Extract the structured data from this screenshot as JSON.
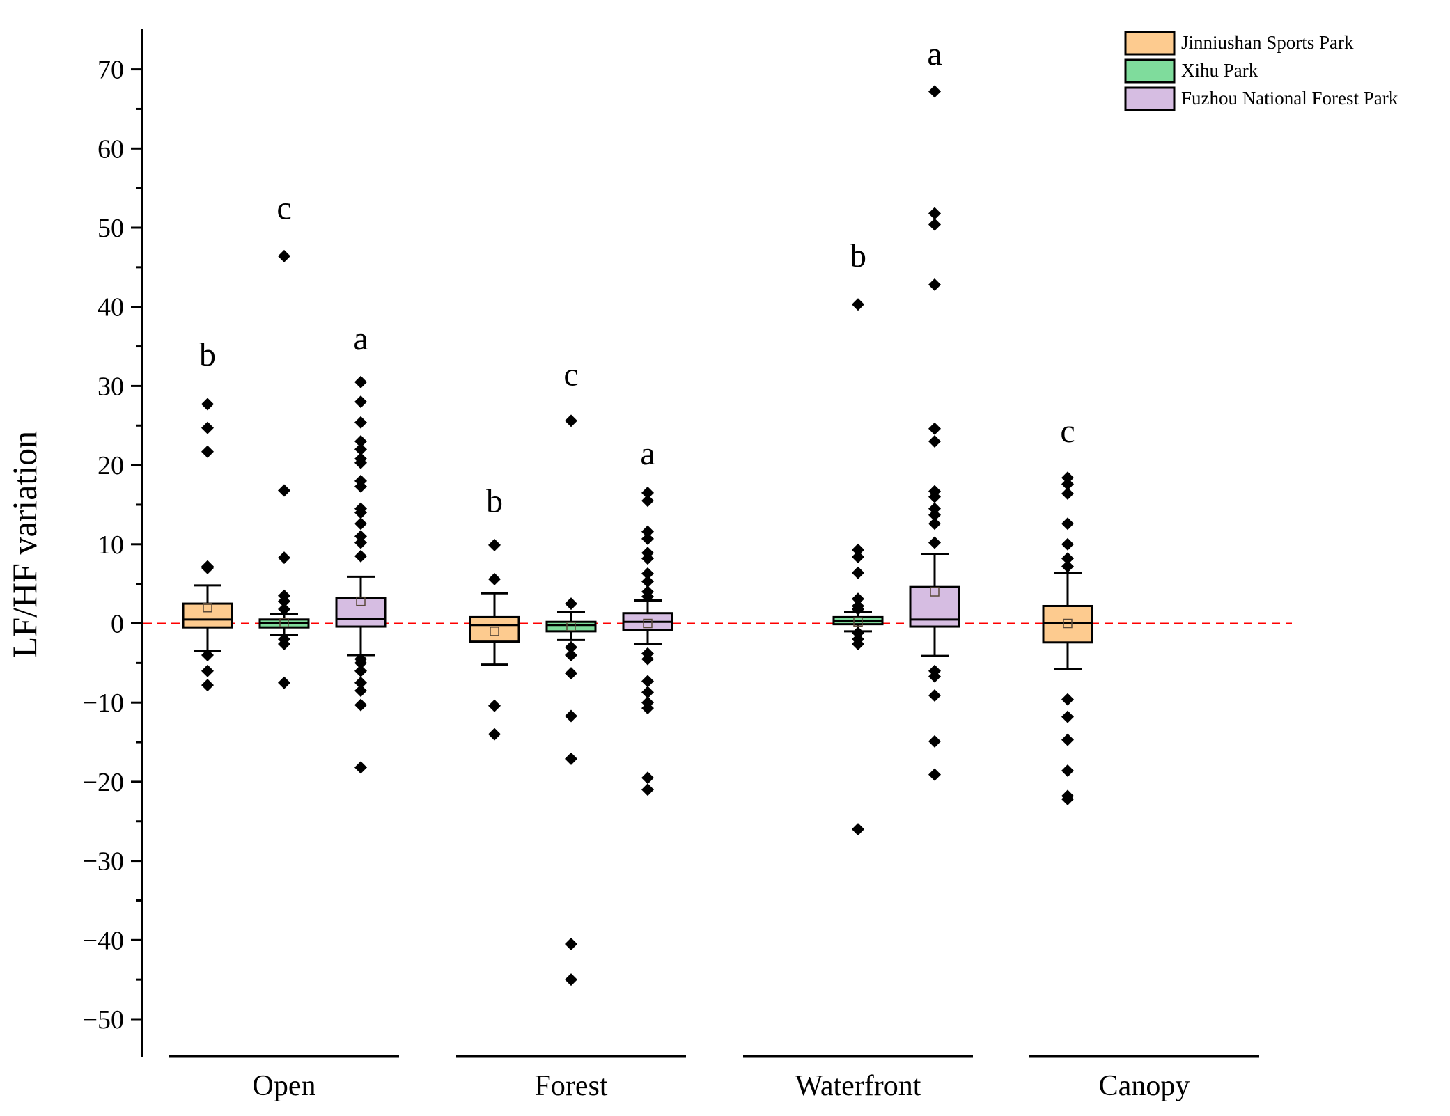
{
  "chart_data": {
    "type": "box",
    "ylabel": "LF/HF variation",
    "xlabel": "",
    "ylim": [
      -55,
      75
    ],
    "yticks": [
      -50,
      -40,
      -30,
      -20,
      -10,
      0,
      10,
      20,
      30,
      40,
      50,
      60,
      70
    ],
    "ytick_labels": [
      "−50",
      "−40",
      "−30",
      "−20",
      "−10",
      "0",
      "10",
      "20",
      "30",
      "40",
      "50",
      "60",
      "70"
    ],
    "reference_line": {
      "y": 0,
      "style": "dashed",
      "color": "#ff0000"
    },
    "categories": [
      "Open",
      "Forest",
      "Waterfront",
      "Canopy"
    ],
    "legend": {
      "position": "top-right",
      "entries": [
        {
          "name": "Jinniushan Sports Park",
          "color": "#fdcb8f"
        },
        {
          "name": "Xihu Park",
          "color": "#7fdc9c"
        },
        {
          "name": "Fuzhou National Forest Park",
          "color": "#d6bde2"
        }
      ]
    },
    "groups": [
      {
        "category": "Open",
        "boxes": [
          {
            "series": "Jinniushan Sports Park",
            "slot": 0,
            "letter": "b",
            "letter_y": 34,
            "whisker_low": -3.5,
            "q1": -0.5,
            "median": 0.5,
            "q3": 2.5,
            "whisker_high": 4.8,
            "mean": 2.0,
            "outliers": [
              27.7,
              24.7,
              21.7,
              7.2,
              7.0,
              -4.0,
              -6.0,
              -7.8
            ]
          },
          {
            "series": "Xihu Park",
            "slot": 1,
            "letter": "c",
            "letter_y": 52.5,
            "whisker_low": -1.5,
            "q1": -0.5,
            "median": 0.0,
            "q3": 0.5,
            "whisker_high": 1.2,
            "mean": 0.1,
            "outliers": [
              46.4,
              16.8,
              8.3,
              3.5,
              2.8,
              1.8,
              -2.0,
              -2.6,
              -7.5
            ]
          },
          {
            "series": "Fuzhou National Forest Park",
            "slot": 2,
            "letter": "a",
            "letter_y": 36,
            "whisker_low": -4.0,
            "q1": -0.4,
            "median": 0.6,
            "q3": 3.2,
            "whisker_high": 5.9,
            "mean": 2.8,
            "outliers": [
              30.5,
              28.0,
              25.4,
              23.0,
              22.0,
              20.8,
              20.3,
              18.0,
              17.3,
              14.5,
              14.0,
              12.6,
              11.0,
              10.2,
              8.5,
              -4.5,
              -5.0,
              -6.0,
              -7.5,
              -8.5,
              -10.3,
              -18.2
            ]
          }
        ]
      },
      {
        "category": "Forest",
        "boxes": [
          {
            "series": "Jinniushan Sports Park",
            "slot": 0,
            "letter": "b",
            "letter_y": 15.5,
            "whisker_low": -5.2,
            "q1": -2.3,
            "median": -0.2,
            "q3": 0.8,
            "whisker_high": 3.8,
            "mean": -1.0,
            "outliers": [
              9.9,
              5.6,
              -10.4,
              -14.0
            ]
          },
          {
            "series": "Xihu Park",
            "slot": 1,
            "letter": "c",
            "letter_y": 31.5,
            "whisker_low": -2.1,
            "q1": -1.0,
            "median": -0.2,
            "q3": 0.2,
            "whisker_high": 1.5,
            "mean": -0.4,
            "outliers": [
              25.6,
              2.5,
              -3.0,
              -4.0,
              -6.3,
              -11.7,
              -17.1,
              -40.5,
              -45.0
            ]
          },
          {
            "series": "Fuzhou National Forest Park",
            "slot": 2,
            "letter": "a",
            "letter_y": 21.5,
            "whisker_low": -2.6,
            "q1": -0.8,
            "median": 0.2,
            "q3": 1.3,
            "whisker_high": 2.9,
            "mean": 0.0,
            "outliers": [
              16.5,
              15.5,
              11.6,
              10.7,
              8.9,
              8.2,
              6.3,
              5.3,
              4.0,
              3.4,
              -3.8,
              -4.5,
              -7.3,
              -8.7,
              -10.0,
              -10.7,
              -19.5,
              -21.0
            ]
          }
        ]
      },
      {
        "category": "Waterfront",
        "boxes": [
          {
            "series": "Xihu Park",
            "slot": 1,
            "letter": "b",
            "letter_y": 46.5,
            "whisker_low": -1.0,
            "q1": -0.1,
            "median": 0.3,
            "q3": 0.8,
            "whisker_high": 1.5,
            "mean": 0.2,
            "outliers": [
              40.3,
              9.3,
              8.4,
              6.4,
              3.1,
              2.2,
              1.8,
              -1.2,
              -2.0,
              -2.6,
              -26.0
            ]
          },
          {
            "series": "Fuzhou National Forest Park",
            "slot": 2,
            "letter": "a",
            "letter_y": 72,
            "whisker_low": -4.1,
            "q1": -0.4,
            "median": 0.5,
            "q3": 4.6,
            "whisker_high": 8.8,
            "mean": 4.0,
            "outliers": [
              67.2,
              51.8,
              50.4,
              42.8,
              24.6,
              23.0,
              16.7,
              16.0,
              14.5,
              13.7,
              12.6,
              10.2,
              -6.0,
              -6.7,
              -9.1,
              -14.9,
              -19.1
            ]
          }
        ]
      },
      {
        "category": "Canopy",
        "boxes": [
          {
            "series": "Jinniushan Sports Park",
            "slot": 0,
            "letter": "c",
            "letter_y": 24.3,
            "whisker_low": -5.8,
            "q1": -2.4,
            "median": 0.0,
            "q3": 2.2,
            "whisker_high": 6.4,
            "mean": 0.0,
            "outliers": [
              18.4,
              17.6,
              16.4,
              12.6,
              10.0,
              8.2,
              7.2,
              -9.6,
              -11.8,
              -14.7,
              -18.6,
              -21.8,
              -22.2
            ]
          }
        ]
      }
    ]
  }
}
